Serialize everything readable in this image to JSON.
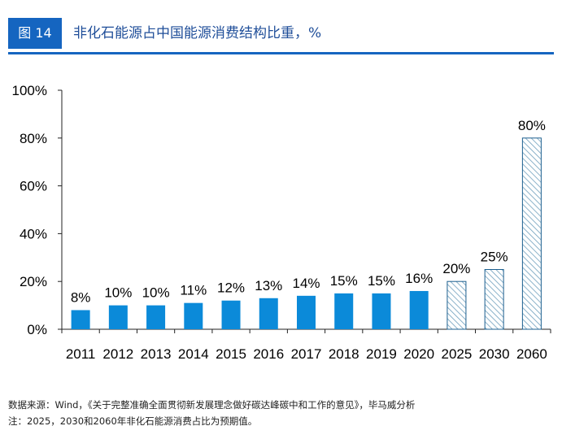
{
  "header": {
    "figure_label": "图 14",
    "title": "非化石能源占中国能源消费结构比重，%"
  },
  "colors": {
    "accent": "#1565c0",
    "bar_actual": "#0b8ad9",
    "bar_forecast_outline": "#1c5f8f",
    "bar_forecast_hatch": "#6f9fbd",
    "title_text": "#1f4e99"
  },
  "chart_data": {
    "type": "bar",
    "categories": [
      "2011",
      "2012",
      "2013",
      "2014",
      "2015",
      "2016",
      "2017",
      "2018",
      "2019",
      "2020",
      "2025",
      "2030",
      "2060"
    ],
    "values": [
      8,
      10,
      10,
      11,
      12,
      13,
      14,
      15,
      15,
      16,
      20,
      25,
      80
    ],
    "data_labels": [
      "8%",
      "10%",
      "10%",
      "11%",
      "12%",
      "13%",
      "14%",
      "15%",
      "15%",
      "16%",
      "20%",
      "25%",
      "80%"
    ],
    "forecast": [
      false,
      false,
      false,
      false,
      false,
      false,
      false,
      false,
      false,
      false,
      true,
      true,
      true
    ],
    "yticks": [
      "0%",
      "20%",
      "40%",
      "60%",
      "80%",
      "100%"
    ],
    "ylim": [
      0,
      100
    ],
    "grid": false,
    "legend": "none",
    "unit": "%"
  },
  "footer": {
    "source": "数据来源：Wind，《关于完整准确全面贯彻新发展理念做好碳达峰碳中和工作的意见》，毕马威分析",
    "note": "注：2025，2030和2060年非化石能源消费占比为预期值。"
  }
}
